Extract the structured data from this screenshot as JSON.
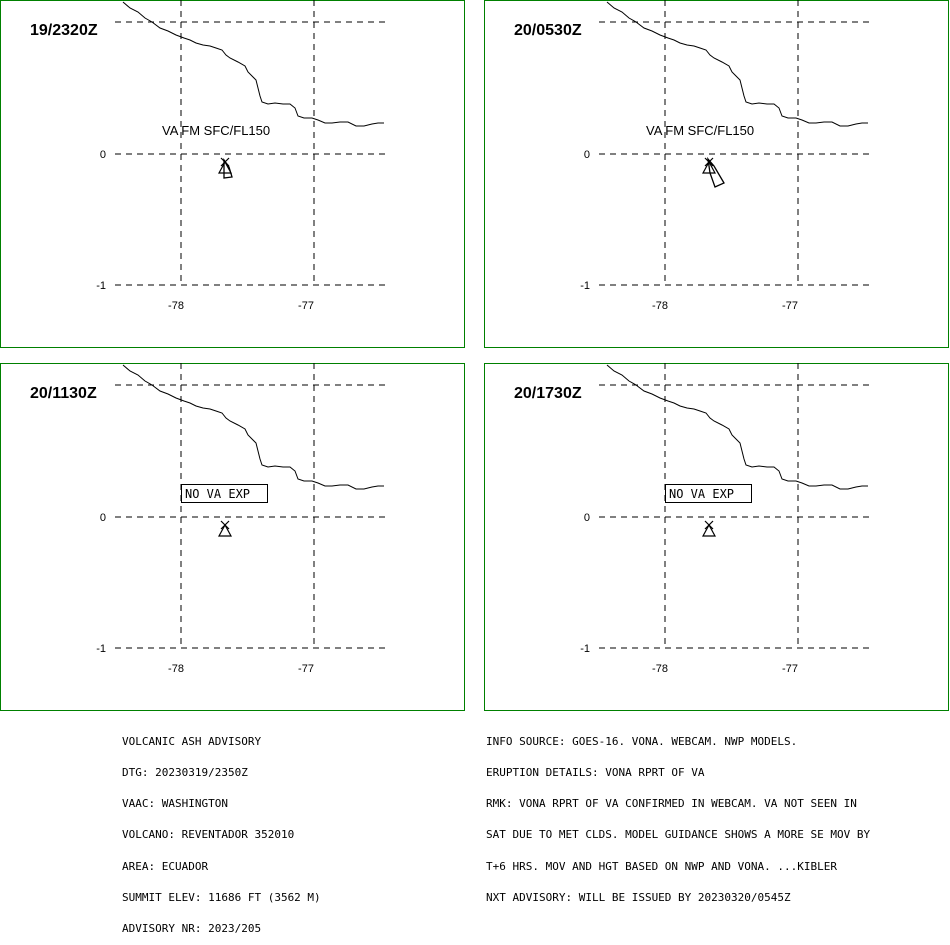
{
  "panels": [
    {
      "time": "19/2320Z",
      "label": "VA FM SFC/FL150",
      "label_boxed": false,
      "lat_labels": [
        "0",
        "-1"
      ],
      "lon_labels": [
        "-78",
        "-77"
      ],
      "ash_area": "small"
    },
    {
      "time": "20/0530Z",
      "label": "VA FM SFC/FL150",
      "label_boxed": false,
      "lat_labels": [
        "0",
        "-1"
      ],
      "lon_labels": [
        "-78",
        "-77"
      ],
      "ash_area": "elongated"
    },
    {
      "time": "20/1130Z",
      "label": "NO VA EXP",
      "label_boxed": true,
      "lat_labels": [
        "0",
        "-1"
      ],
      "lon_labels": [
        "-78",
        "-77"
      ],
      "ash_area": "none"
    },
    {
      "time": "20/1730Z",
      "label": "NO VA EXP",
      "label_boxed": true,
      "lat_labels": [
        "0",
        "-1"
      ],
      "lon_labels": [
        "-78",
        "-77"
      ],
      "ash_area": "none"
    }
  ],
  "advisory_left": [
    "VOLCANIC ASH ADVISORY",
    "DTG: 20230319/2350Z",
    "VAAC: WASHINGTON",
    "VOLCANO: REVENTADOR 352010",
    "AREA: ECUADOR",
    "SUMMIT ELEV: 11686 FT (3562 M)",
    "ADVISORY NR: 2023/205"
  ],
  "advisory_right": [
    "INFO SOURCE: GOES-16. VONA. WEBCAM. NWP MODELS.",
    "ERUPTION DETAILS: VONA RPRT OF VA",
    "RMK: VONA RPRT OF VA CONFIRMED IN WEBCAM. VA NOT SEEN IN",
    "SAT DUE TO MET CLDS. MODEL GUIDANCE SHOWS A MORE SE MOV BY",
    "T+6 HRS. MOV AND HGT BASED ON NWP AND VONA. ...KIBLER",
    "NXT ADVISORY: WILL BE ISSUED BY 20230320/0545Z"
  ],
  "colors": {
    "frame": "#008000",
    "lines": "#000000"
  }
}
